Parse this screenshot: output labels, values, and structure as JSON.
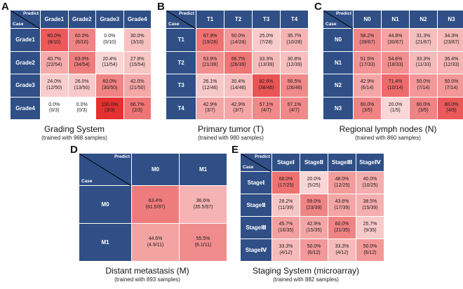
{
  "chart_data": [
    {
      "type": "heatmap",
      "panel": "A",
      "title": "Grading System",
      "subtitle": "(trained with 968 samples)",
      "corner": {
        "predict": "Predict",
        "case": "Case"
      },
      "columns": [
        "Grade1",
        "Grade2",
        "Grade3",
        "Grade4"
      ],
      "rows": [
        "Grade1",
        "Grade2",
        "Grade3",
        "Grade4"
      ],
      "values": [
        [
          0.8,
          0.6,
          0.0,
          0.3
        ],
        [
          0.407,
          0.63,
          0.204,
          0.278
        ],
        [
          0.24,
          0.26,
          0.6,
          0.42
        ],
        [
          0.0,
          0.0,
          1.0,
          0.667
        ]
      ],
      "cells": [
        [
          {
            "pct": "80.0%",
            "frac": "(8/10)"
          },
          {
            "pct": "60.0%",
            "frac": "(6/10)"
          },
          {
            "pct": "0.0%",
            "frac": "(0/10)"
          },
          {
            "pct": "30.0%",
            "frac": "(3/10)"
          }
        ],
        [
          {
            "pct": "40.7%",
            "frac": "(22/54)"
          },
          {
            "pct": "63.0%",
            "frac": "(34/54)"
          },
          {
            "pct": "20.4%",
            "frac": "(11/54)"
          },
          {
            "pct": "27.8%",
            "frac": "(15/54)"
          }
        ],
        [
          {
            "pct": "24.0%",
            "frac": "(12/50)"
          },
          {
            "pct": "26.0%",
            "frac": "(13/50)"
          },
          {
            "pct": "60.0%",
            "frac": "(30/50)"
          },
          {
            "pct": "42.0%",
            "frac": "(21/50)"
          }
        ],
        [
          {
            "pct": "0.0%",
            "frac": "(0/3)"
          },
          {
            "pct": "0.0%",
            "frac": "(0/3)"
          },
          {
            "pct": "100.0%",
            "frac": "(3/3)"
          },
          {
            "pct": "66.7%",
            "frac": "(2/3)"
          }
        ]
      ]
    },
    {
      "type": "heatmap",
      "panel": "B",
      "title": "Primary tumor (T)",
      "subtitle": "(trained with 980 samples)",
      "corner": {
        "predict": "Predict",
        "case": "Case"
      },
      "columns": [
        "T1",
        "T2",
        "T3",
        "T4"
      ],
      "rows": [
        "T1",
        "T2",
        "T3",
        "T4"
      ],
      "values": [
        [
          0.679,
          0.5,
          0.25,
          0.357
        ],
        [
          0.539,
          0.667,
          0.333,
          0.308
        ],
        [
          0.261,
          0.304,
          0.826,
          0.565
        ],
        [
          0.429,
          0.429,
          0.571,
          0.571
        ]
      ],
      "cells": [
        [
          {
            "pct": "67.9%",
            "frac": "(19/28)"
          },
          {
            "pct": "50.0%",
            "frac": "(14/28)"
          },
          {
            "pct": "25.0%",
            "frac": "(7/28)"
          },
          {
            "pct": "35.7%",
            "frac": "(10/28)"
          }
        ],
        [
          {
            "pct": "53.9%",
            "frac": "(21/39)"
          },
          {
            "pct": "66.7%",
            "frac": "(26/39)"
          },
          {
            "pct": "33.3%",
            "frac": "(13/39)"
          },
          {
            "pct": "30.8%",
            "frac": "(12/39)"
          }
        ],
        [
          {
            "pct": "26.1%",
            "frac": "(12/46)"
          },
          {
            "pct": "30.4%",
            "frac": "(14/46)"
          },
          {
            "pct": "82.6%",
            "frac": "(38/46)"
          },
          {
            "pct": "56.5%",
            "frac": "(26/46)"
          }
        ],
        [
          {
            "pct": "42.9%",
            "frac": "(3/7)"
          },
          {
            "pct": "42.9%",
            "frac": "(3/7)"
          },
          {
            "pct": "57.1%",
            "frac": "(4/7)"
          },
          {
            "pct": "57.1%",
            "frac": "(4/7)"
          }
        ]
      ]
    },
    {
      "type": "heatmap",
      "panel": "C",
      "title": "Regional lymph nodes (N)",
      "subtitle": "(trained with 860 samples)",
      "corner": {
        "predict": "Predict",
        "case": "Case"
      },
      "columns": [
        "N0",
        "N1",
        "N2",
        "N3"
      ],
      "rows": [
        "N0",
        "N1",
        "N2",
        "N3"
      ],
      "values": [
        [
          0.582,
          0.448,
          0.313,
          0.343
        ],
        [
          0.515,
          0.546,
          0.333,
          0.364
        ],
        [
          0.429,
          0.714,
          0.5,
          0.5
        ],
        [
          0.6,
          0.2,
          0.6,
          0.8
        ]
      ],
      "cells": [
        [
          {
            "pct": "58.2%",
            "frac": "(39/67)"
          },
          {
            "pct": "44.8%",
            "frac": "(30/67)"
          },
          {
            "pct": "31.3%",
            "frac": "(21/67)"
          },
          {
            "pct": "34.3%",
            "frac": "(23/67)"
          }
        ],
        [
          {
            "pct": "51.5%",
            "frac": "(17/33)"
          },
          {
            "pct": "54.6%",
            "frac": "(18/33)"
          },
          {
            "pct": "33.3%",
            "frac": "(11/33)"
          },
          {
            "pct": "36.4%",
            "frac": "(12/33)"
          }
        ],
        [
          {
            "pct": "42.9%",
            "frac": "(6/14)"
          },
          {
            "pct": "71.4%",
            "frac": "(10/14)"
          },
          {
            "pct": "50.0%",
            "frac": "(7/14)"
          },
          {
            "pct": "50.0%",
            "frac": "(7/14)"
          }
        ],
        [
          {
            "pct": "60.0%",
            "frac": "(3/5)"
          },
          {
            "pct": "20.0%",
            "frac": "(1/5)"
          },
          {
            "pct": "60.0%",
            "frac": "(3/5)"
          },
          {
            "pct": "80.0%",
            "frac": "(4/5)"
          }
        ]
      ]
    },
    {
      "type": "heatmap",
      "panel": "D",
      "title": "Distant metastasis (M)",
      "subtitle": "(trained with 893 samples)",
      "corner": {
        "predict": "Predict",
        "case": "Case"
      },
      "columns": [
        "M0",
        "M1"
      ],
      "rows": [
        "M0",
        "M1"
      ],
      "values": [
        [
          0.634,
          0.366
        ],
        [
          0.446,
          0.555
        ]
      ],
      "cells": [
        [
          {
            "pct": "63.4%",
            "frac": "(61.5/97)"
          },
          {
            "pct": "36.6%",
            "frac": "(35.5/97)"
          }
        ],
        [
          {
            "pct": "44.6%",
            "frac": "(4.9/11)"
          },
          {
            "pct": "55.5%",
            "frac": "(6.1/11)"
          }
        ]
      ]
    },
    {
      "type": "heatmap",
      "panel": "E",
      "title": "Staging System (microarray)",
      "subtitle": "(trained with 882 samples)",
      "corner": {
        "predict": "Predict",
        "case": "Case"
      },
      "columns": [
        "StageⅠ",
        "StageⅡ",
        "StageⅢ",
        "StageⅣ"
      ],
      "rows": [
        "StageⅠ",
        "StageⅡ",
        "StageⅢ",
        "StageⅣ"
      ],
      "values": [
        [
          0.68,
          0.2,
          0.48,
          0.4
        ],
        [
          0.282,
          0.59,
          0.436,
          0.385
        ],
        [
          0.457,
          0.429,
          0.6,
          0.257
        ],
        [
          0.333,
          0.5,
          0.333,
          0.5
        ]
      ],
      "cells": [
        [
          {
            "pct": "68.0%",
            "frac": "(17/25)"
          },
          {
            "pct": "20.0%",
            "frac": "(5/25)"
          },
          {
            "pct": "48.0%",
            "frac": "(12/25)"
          },
          {
            "pct": "40.0%",
            "frac": "(10/25)"
          }
        ],
        [
          {
            "pct": "28.2%",
            "frac": "(11/39)"
          },
          {
            "pct": "59.0%",
            "frac": "(23/39)"
          },
          {
            "pct": "43.6%",
            "frac": "(17/39)"
          },
          {
            "pct": "38.5%",
            "frac": "(15/39)"
          }
        ],
        [
          {
            "pct": "45.7%",
            "frac": "(16/35)"
          },
          {
            "pct": "42.9%",
            "frac": "(15/35)"
          },
          {
            "pct": "60.0%",
            "frac": "(21/35)"
          },
          {
            "pct": "25.7%",
            "frac": "(9/35)"
          }
        ],
        [
          {
            "pct": "33.3%",
            "frac": "(4/12)"
          },
          {
            "pct": "50.0%",
            "frac": "(6/12)"
          },
          {
            "pct": "33.3%",
            "frac": "(4/12)"
          },
          {
            "pct": "50.0%",
            "frac": "(6/12)"
          }
        ]
      ]
    }
  ],
  "colors": {
    "header": "#2f4f86",
    "low": "#ffffff",
    "high": "#e63030",
    "text": "#1a1a1a"
  }
}
